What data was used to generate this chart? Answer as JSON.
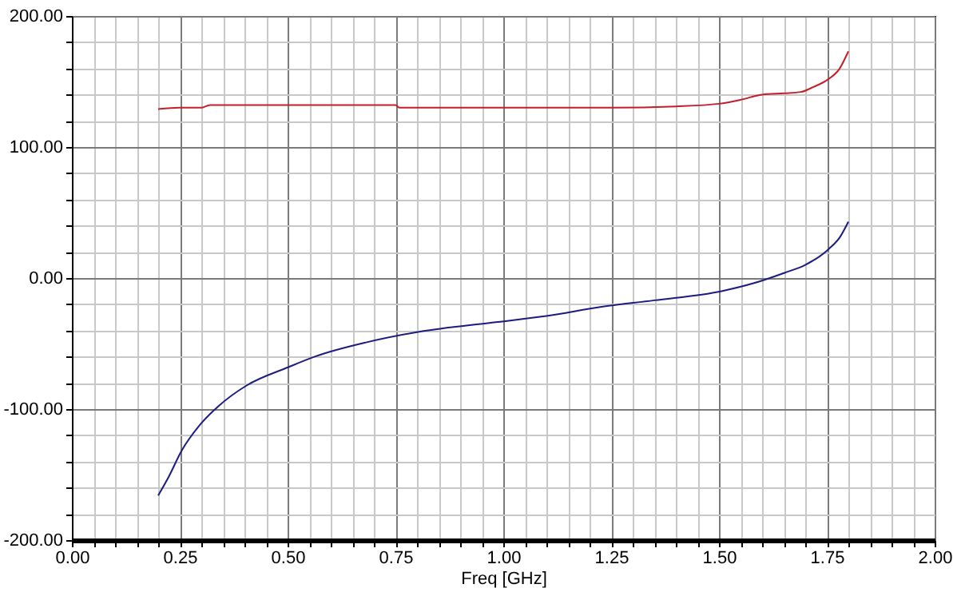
{
  "chart_data": {
    "type": "line",
    "xlabel": "Freq [GHz]",
    "xlim": [
      0,
      2
    ],
    "ylim": [
      -200,
      200
    ],
    "xticks": [
      {
        "value": 0,
        "label": "0.00"
      },
      {
        "value": 0.05,
        "label": null
      },
      {
        "value": 0.1,
        "label": null
      },
      {
        "value": 0.15,
        "label": null
      },
      {
        "value": 0.2,
        "label": null
      },
      {
        "value": 0.25,
        "label": "0.25"
      },
      {
        "value": 0.3,
        "label": null
      },
      {
        "value": 0.35,
        "label": null
      },
      {
        "value": 0.4,
        "label": null
      },
      {
        "value": 0.45,
        "label": null
      },
      {
        "value": 0.5,
        "label": "0.50"
      },
      {
        "value": 0.55,
        "label": null
      },
      {
        "value": 0.6,
        "label": null
      },
      {
        "value": 0.65,
        "label": null
      },
      {
        "value": 0.7,
        "label": null
      },
      {
        "value": 0.75,
        "label": "0.75"
      },
      {
        "value": 0.8,
        "label": null
      },
      {
        "value": 0.85,
        "label": null
      },
      {
        "value": 0.9,
        "label": null
      },
      {
        "value": 0.95,
        "label": null
      },
      {
        "value": 1,
        "label": "1.00"
      },
      {
        "value": 1.05,
        "label": null
      },
      {
        "value": 1.1,
        "label": null
      },
      {
        "value": 1.15,
        "label": null
      },
      {
        "value": 1.2,
        "label": null
      },
      {
        "value": 1.25,
        "label": "1.25"
      },
      {
        "value": 1.3,
        "label": null
      },
      {
        "value": 1.35,
        "label": null
      },
      {
        "value": 1.4,
        "label": null
      },
      {
        "value": 1.45,
        "label": null
      },
      {
        "value": 1.5,
        "label": "1.50"
      },
      {
        "value": 1.55,
        "label": null
      },
      {
        "value": 1.6,
        "label": null
      },
      {
        "value": 1.65,
        "label": null
      },
      {
        "value": 1.7,
        "label": null
      },
      {
        "value": 1.75,
        "label": "1.75"
      },
      {
        "value": 1.8,
        "label": null
      },
      {
        "value": 1.85,
        "label": null
      },
      {
        "value": 1.9,
        "label": null
      },
      {
        "value": 1.95,
        "label": null
      },
      {
        "value": 2,
        "label": "2.00"
      }
    ],
    "yticks": [
      {
        "value": -200,
        "label": "-200.00"
      },
      {
        "value": -180,
        "label": null
      },
      {
        "value": -160,
        "label": null
      },
      {
        "value": -140,
        "label": null
      },
      {
        "value": -120,
        "label": null
      },
      {
        "value": -100,
        "label": "-100.00"
      },
      {
        "value": -80,
        "label": null
      },
      {
        "value": -60,
        "label": null
      },
      {
        "value": -40,
        "label": null
      },
      {
        "value": -20,
        "label": null
      },
      {
        "value": 0,
        "label": "0.00"
      },
      {
        "value": 20,
        "label": null
      },
      {
        "value": 40,
        "label": null
      },
      {
        "value": 60,
        "label": null
      },
      {
        "value": 80,
        "label": null
      },
      {
        "value": 100,
        "label": "100.00"
      },
      {
        "value": 120,
        "label": null
      },
      {
        "value": 140,
        "label": null
      },
      {
        "value": 160,
        "label": null
      },
      {
        "value": 180,
        "label": null
      },
      {
        "value": 200,
        "label": "200.00"
      }
    ],
    "grid": true,
    "series": [
      {
        "color": "#c41e2a",
        "x": [
          0.2,
          0.25,
          0.3,
          0.32,
          0.5,
          0.75,
          0.76,
          1.0,
          1.25,
          1.4,
          1.5,
          1.55,
          1.6,
          1.65,
          1.69,
          1.72,
          1.75,
          1.78,
          1.8
        ],
        "values": [
          129,
          130,
          130,
          132,
          132,
          132,
          130,
          130,
          130,
          131,
          133,
          136,
          140,
          141,
          142,
          146,
          151,
          160,
          173
        ]
      },
      {
        "color": "#1c1c80",
        "x": [
          0.2,
          0.224,
          0.254,
          0.297,
          0.339,
          0.405,
          0.502,
          0.563,
          0.684,
          0.805,
          0.974,
          1.1,
          1.228,
          1.35,
          1.506,
          1.58,
          1.652,
          1.7,
          1.754,
          1.78,
          1.8
        ],
        "values": [
          -166,
          -152,
          -132,
          -112,
          -98,
          -82,
          -68,
          -60,
          -49,
          -41,
          -34,
          -29,
          -22,
          -17,
          -10,
          -4,
          4,
          10,
          22,
          31,
          43
        ]
      }
    ]
  }
}
